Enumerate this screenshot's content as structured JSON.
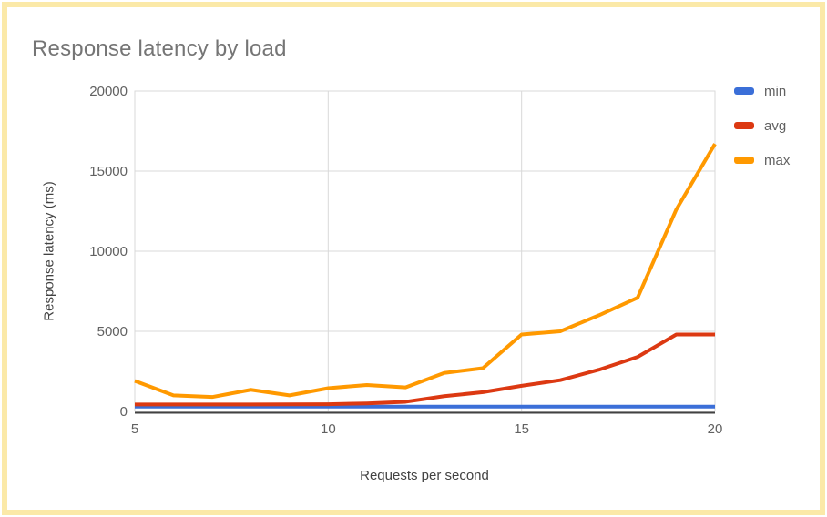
{
  "page": {
    "background_color": "#FFFFFF",
    "border_color": "#FBE9A8"
  },
  "chart_data": {
    "type": "line",
    "title": "Response latency by load",
    "xlabel": "Requests per second",
    "ylabel": "Response latency (ms)",
    "x": [
      5,
      6,
      7,
      8,
      9,
      10,
      11,
      12,
      13,
      14,
      15,
      16,
      17,
      18,
      19,
      20
    ],
    "series": [
      {
        "name": "min",
        "color": "#3B6FD8",
        "values": [
          300,
          300,
          300,
          300,
          300,
          300,
          300,
          300,
          300,
          300,
          300,
          300,
          300,
          300,
          300,
          300
        ]
      },
      {
        "name": "avg",
        "color": "#DC3912",
        "values": [
          430,
          430,
          430,
          430,
          440,
          450,
          500,
          600,
          950,
          1200,
          1600,
          1950,
          2600,
          3400,
          4800,
          4800
        ]
      },
      {
        "name": "max",
        "color": "#FF9900",
        "values": [
          1900,
          1000,
          900,
          1350,
          1000,
          1450,
          1650,
          1500,
          2400,
          2700,
          4800,
          5000,
          6000,
          7100,
          12600,
          16700
        ]
      }
    ],
    "xlim": [
      5,
      20
    ],
    "ylim": [
      0,
      20000
    ],
    "x_ticks": [
      5,
      10,
      15,
      20
    ],
    "y_ticks": [
      0,
      5000,
      10000,
      15000,
      20000
    ],
    "grid": true,
    "legend_position": "right",
    "colors": {
      "grid": "#D9D9D9",
      "axis_line": "#424242",
      "tick_label": "#616161",
      "axis_title": "#424242",
      "title": "#757575"
    }
  }
}
